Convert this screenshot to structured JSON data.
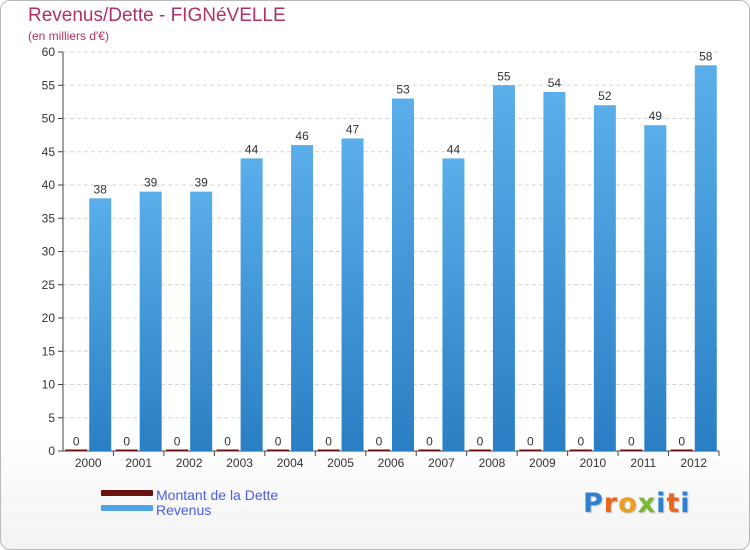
{
  "header": {
    "title": "Revenus/Dette - FIGNéVELLE",
    "subtitle": "(en milliers d'€)"
  },
  "logo": {
    "letters": [
      "P",
      "r",
      "o",
      "x",
      "i",
      "t",
      "i"
    ],
    "colors": [
      "#2f7fd0",
      "#e8671d",
      "#e9a020",
      "#7cb82f",
      "#2f7fd0",
      "#e8671d",
      "#2f7fd0"
    ]
  },
  "chart_data": {
    "type": "bar",
    "categories": [
      "2000",
      "2001",
      "2002",
      "2003",
      "2004",
      "2005",
      "2006",
      "2007",
      "2008",
      "2009",
      "2010",
      "2011",
      "2012"
    ],
    "series": [
      {
        "name": "Montant de la Dette",
        "values": [
          0,
          0,
          0,
          0,
          0,
          0,
          0,
          0,
          0,
          0,
          0,
          0,
          0
        ],
        "color": "#6b0f0f"
      },
      {
        "name": "Revenus",
        "values": [
          38,
          39,
          39,
          44,
          46,
          47,
          53,
          44,
          55,
          54,
          52,
          49,
          58
        ],
        "color": "#4da3e6"
      }
    ],
    "ylim": [
      0,
      60
    ],
    "yticks": [
      0,
      5,
      10,
      15,
      20,
      25,
      30,
      35,
      40,
      45,
      50,
      55,
      60
    ],
    "grid": true,
    "legend": "bottom-left"
  }
}
